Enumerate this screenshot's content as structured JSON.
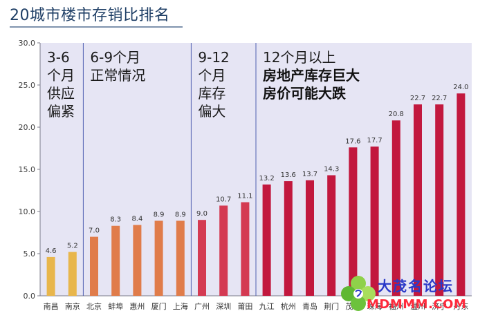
{
  "page": {
    "title": "20城市楼市存销比排名"
  },
  "chart_data": {
    "type": "bar",
    "categories": [
      "南昌",
      "南京",
      "北京",
      "蚌埠",
      "惠州",
      "厦门",
      "上海",
      "广州",
      "深圳",
      "莆田",
      "九江",
      "杭州",
      "青岛",
      "荆门",
      "茂名",
      "珠海",
      "福州",
      "温州",
      "济宁",
      "丹东"
    ],
    "values": [
      4.6,
      5.2,
      7.0,
      8.3,
      8.4,
      8.9,
      8.9,
      9.0,
      10.7,
      11.1,
      13.2,
      13.6,
      13.7,
      14.3,
      17.6,
      17.7,
      20.8,
      22.7,
      22.7,
      24.0
    ],
    "value_labels": [
      "4.6",
      "5.2",
      "7.0",
      "8.3",
      "8.4",
      "8.9",
      "8.9",
      "9.0",
      "10.7",
      "11.1",
      "13.2",
      "13.6",
      "13.7",
      "14.3",
      "17.6",
      "17.7",
      "20.8",
      "22.7",
      "22.7",
      "24.0"
    ],
    "title": "",
    "xlabel": "",
    "ylabel": "",
    "ylim": [
      0,
      30
    ],
    "yticks": [
      "0.0",
      "5.0",
      "10.0",
      "15.0",
      "20.0",
      "25.0",
      "30.0"
    ],
    "grid": false,
    "group_colors": [
      "#e8b64c",
      "#e07c4a",
      "#d43a52",
      "#c2183e"
    ],
    "plot_background": "#e6e5f4",
    "groups": [
      {
        "name_lines": [
          "3-6",
          "个月",
          "供应",
          "偏紧"
        ],
        "emphasis_lines": [],
        "start": 0,
        "end": 1
      },
      {
        "name_lines": [
          "6-9个月",
          "正常情况"
        ],
        "emphasis_lines": [],
        "start": 2,
        "end": 6
      },
      {
        "name_lines": [
          "9-12",
          "个月",
          "库存",
          "偏大"
        ],
        "emphasis_lines": [],
        "start": 7,
        "end": 9
      },
      {
        "name_lines": [
          "12个月以上"
        ],
        "emphasis_lines": [
          "房地产库存巨大",
          "房价可能大跌"
        ],
        "start": 10,
        "end": 19
      }
    ]
  },
  "watermark": {
    "site_name": "大茂名论坛",
    "url": "MDMMM.COM"
  }
}
